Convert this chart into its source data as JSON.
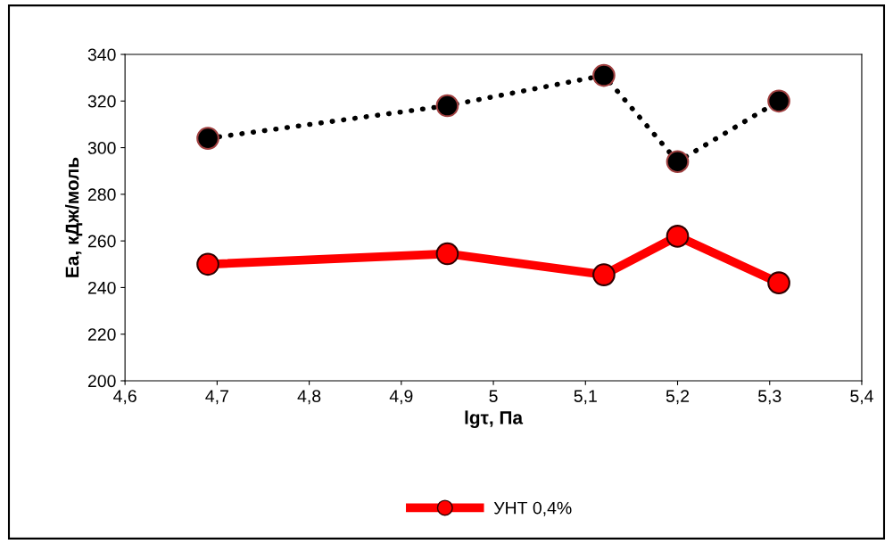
{
  "chart_data": {
    "type": "line",
    "xlabel": "lgτ, Па",
    "ylabel": "Ea, кДж/моль",
    "xlim": [
      4.6,
      5.4
    ],
    "xticks": [
      {
        "value": 4.6,
        "label": "4,6"
      },
      {
        "value": 4.7,
        "label": "4,7"
      },
      {
        "value": 4.8,
        "label": "4,8"
      },
      {
        "value": 4.9,
        "label": "4,9"
      },
      {
        "value": 5.0,
        "label": "5"
      },
      {
        "value": 5.1,
        "label": "5,1"
      },
      {
        "value": 5.2,
        "label": "5,2"
      },
      {
        "value": 5.3,
        "label": "5,3"
      },
      {
        "value": 5.4,
        "label": "5,4"
      }
    ],
    "ylim": [
      200,
      340
    ],
    "yticks": [
      200,
      220,
      240,
      260,
      280,
      300,
      320,
      340
    ],
    "x": [
      4.69,
      4.95,
      5.12,
      5.2,
      5.31
    ],
    "series": [
      {
        "color": "#000000",
        "line_style": "dotted",
        "values": [
          304,
          318,
          331,
          294,
          320
        ]
      },
      {
        "name": "УНТ 0,4%",
        "color": "#ff0000",
        "line_style": "solid",
        "values": [
          250,
          254.5,
          245.5,
          262,
          242
        ]
      }
    ],
    "marker": "circle",
    "grid": false,
    "legend": "bottom"
  }
}
